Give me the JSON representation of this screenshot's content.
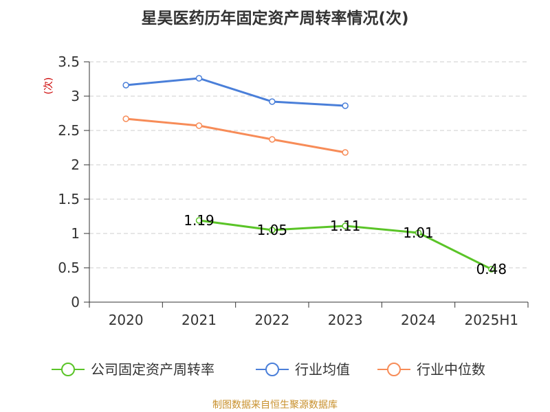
{
  "chart_data": {
    "type": "line",
    "title": "星昊医药历年固定资产周转率情况(次)",
    "ylabel": "(次)",
    "xlabel": "",
    "categories": [
      "2020",
      "2021",
      "2022",
      "2023",
      "2024",
      "2025H1"
    ],
    "ylim": [
      0,
      3.5
    ],
    "yticks": [
      "0",
      "0.5",
      "1",
      "1.5",
      "2",
      "2.5",
      "3",
      "3.5"
    ],
    "grid": true,
    "legend_position": "bottom",
    "series": [
      {
        "name": "公司固定资产周转率",
        "color": "#5ac427",
        "values": [
          null,
          1.19,
          1.05,
          1.11,
          1.01,
          0.48
        ],
        "labels": [
          "",
          "1.19",
          "1.05",
          "1.11",
          "1.01",
          "0.48"
        ]
      },
      {
        "name": "行业均值",
        "color": "#4a7fd9",
        "values": [
          3.16,
          3.26,
          2.92,
          2.86,
          null,
          null
        ]
      },
      {
        "name": "行业中位数",
        "color": "#f78c58",
        "values": [
          2.67,
          2.57,
          2.37,
          2.18,
          null,
          null
        ]
      }
    ]
  },
  "source": "制图数据来自恒生聚源数据库"
}
